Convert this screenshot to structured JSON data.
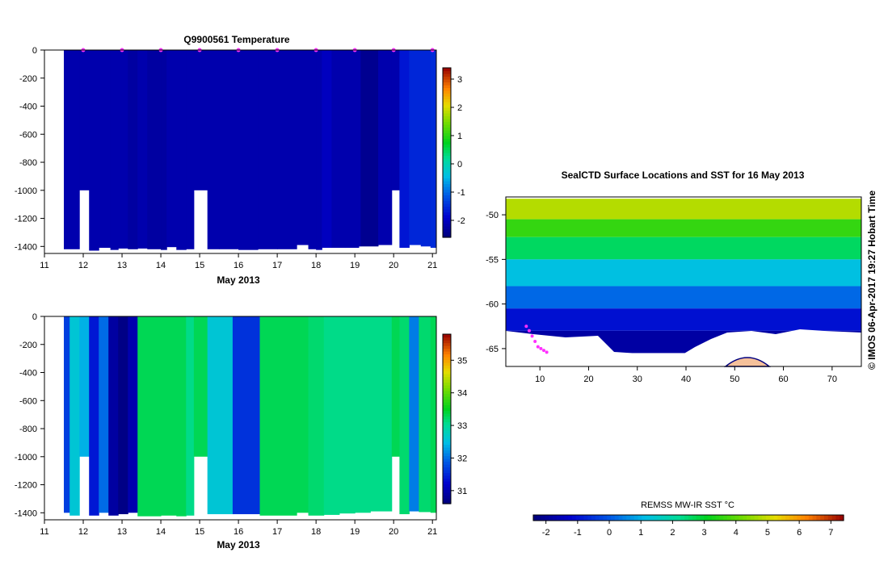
{
  "chart_data": [
    {
      "type": "heatmap",
      "title": "Q9900561  Temperature",
      "xlabel": "May 2013",
      "ylabel": "",
      "x_ticks": [
        "11",
        "12",
        "13",
        "14",
        "15",
        "16",
        "17",
        "18",
        "19",
        "20",
        "21"
      ],
      "y_ticks": [
        "0",
        "-200",
        "-400",
        "-600",
        "-800",
        "-1000",
        "-1200",
        "-1400"
      ],
      "xlim": [
        11,
        21.1
      ],
      "ylim": [
        -1450,
        0
      ],
      "colorbar": {
        "ticks": [
          "-2",
          "-1",
          "0",
          "1",
          "2",
          "3"
        ],
        "range": [
          -2.6,
          3.4
        ]
      },
      "profiles": [
        {
          "x0": 11.5,
          "x1": 11.9,
          "value": -2.15,
          "bottom": -1420
        },
        {
          "x0": 11.9,
          "x1": 12.15,
          "value": -2.15,
          "bottom": -1000
        },
        {
          "x0": 12.15,
          "x1": 12.4,
          "value": -2.15,
          "bottom": -1430
        },
        {
          "x0": 12.4,
          "x1": 12.7,
          "value": -2.15,
          "bottom": -1410
        },
        {
          "x0": 12.7,
          "x1": 12.9,
          "value": -2.15,
          "bottom": -1425
        },
        {
          "x0": 12.9,
          "x1": 13.15,
          "value": -2.15,
          "bottom": -1415
        },
        {
          "x0": 13.15,
          "x1": 13.4,
          "value": -2.25,
          "bottom": -1420
        },
        {
          "x0": 13.4,
          "x1": 13.65,
          "value": -2.15,
          "bottom": -1415
        },
        {
          "x0": 13.65,
          "x1": 14.0,
          "value": -2.25,
          "bottom": -1420
        },
        {
          "x0": 14.0,
          "x1": 14.15,
          "value": -2.25,
          "bottom": -1425
        },
        {
          "x0": 14.15,
          "x1": 14.4,
          "value": -2.15,
          "bottom": -1405
        },
        {
          "x0": 14.4,
          "x1": 14.65,
          "value": -2.15,
          "bottom": -1425
        },
        {
          "x0": 14.65,
          "x1": 14.85,
          "value": -2.15,
          "bottom": -1420
        },
        {
          "x0": 14.85,
          "x1": 15.2,
          "value": -2.15,
          "bottom": -1000
        },
        {
          "x0": 15.2,
          "x1": 15.5,
          "value": -2.15,
          "bottom": -1420
        },
        {
          "x0": 15.5,
          "x1": 16.0,
          "value": -2.15,
          "bottom": -1420
        },
        {
          "x0": 16.0,
          "x1": 16.5,
          "value": -2.15,
          "bottom": -1425
        },
        {
          "x0": 16.5,
          "x1": 17.0,
          "value": -2.15,
          "bottom": -1420
        },
        {
          "x0": 17.0,
          "x1": 17.5,
          "value": -2.15,
          "bottom": -1420
        },
        {
          "x0": 17.5,
          "x1": 17.8,
          "value": -2.15,
          "bottom": -1390
        },
        {
          "x0": 17.8,
          "x1": 18.0,
          "value": -2.15,
          "bottom": -1420
        },
        {
          "x0": 18.0,
          "x1": 18.15,
          "value": -2.15,
          "bottom": -1425
        },
        {
          "x0": 18.15,
          "x1": 18.4,
          "value": -2.0,
          "bottom": -1410
        },
        {
          "x0": 18.4,
          "x1": 18.75,
          "value": -2.15,
          "bottom": -1410
        },
        {
          "x0": 18.75,
          "x1": 19.1,
          "value": -2.15,
          "bottom": -1410
        },
        {
          "x0": 19.1,
          "x1": 19.15,
          "value": -2.15,
          "bottom": -1400
        },
        {
          "x0": 19.15,
          "x1": 19.6,
          "value": -2.4,
          "bottom": -1400
        },
        {
          "x0": 19.6,
          "x1": 19.95,
          "value": -2.15,
          "bottom": -1390
        },
        {
          "x0": 19.95,
          "x1": 20.15,
          "value": -2.15,
          "bottom": -1000
        },
        {
          "x0": 20.15,
          "x1": 20.4,
          "value": -1.7,
          "bottom": -1410
        },
        {
          "x0": 20.4,
          "x1": 20.7,
          "value": -1.55,
          "bottom": -1390
        },
        {
          "x0": 20.7,
          "x1": 20.95,
          "value": -1.55,
          "bottom": -1400
        },
        {
          "x0": 20.95,
          "x1": 21.1,
          "value": -1.5,
          "bottom": -1410
        }
      ],
      "surface_markers_x": [
        12.0,
        13.0,
        14.0,
        15.0,
        16.0,
        17.0,
        18.0,
        19.0,
        20.0,
        21.0
      ]
    },
    {
      "type": "heatmap",
      "title": "",
      "xlabel": "May 2013",
      "ylabel": "",
      "x_ticks": [
        "11",
        "12",
        "13",
        "14",
        "15",
        "16",
        "17",
        "18",
        "19",
        "20",
        "21"
      ],
      "y_ticks": [
        "0",
        "-200",
        "-400",
        "-600",
        "-800",
        "-1000",
        "-1200",
        "-1400"
      ],
      "xlim": [
        11,
        21.1
      ],
      "ylim": [
        -1450,
        0
      ],
      "colorbar": {
        "ticks": [
          "31",
          "32",
          "33",
          "34",
          "35"
        ],
        "range": [
          30.6,
          35.8
        ]
      },
      "profiles": [
        {
          "x0": 11.5,
          "x1": 11.65,
          "value": 31.7,
          "bottom": -1400
        },
        {
          "x0": 11.65,
          "x1": 11.9,
          "value": 32.6,
          "bottom": -1420
        },
        {
          "x0": 11.9,
          "x1": 12.15,
          "value": 32.4,
          "bottom": -1000
        },
        {
          "x0": 12.15,
          "x1": 12.4,
          "value": 31.4,
          "bottom": -1420
        },
        {
          "x0": 12.4,
          "x1": 12.65,
          "value": 32.0,
          "bottom": -1400
        },
        {
          "x0": 12.65,
          "x1": 12.9,
          "value": 30.9,
          "bottom": -1420
        },
        {
          "x0": 12.9,
          "x1": 13.15,
          "value": 30.7,
          "bottom": -1410
        },
        {
          "x0": 13.15,
          "x1": 13.4,
          "value": 31.0,
          "bottom": -1400
        },
        {
          "x0": 13.4,
          "x1": 14.0,
          "value": 33.3,
          "bottom": -1425
        },
        {
          "x0": 14.0,
          "x1": 14.4,
          "value": 33.3,
          "bottom": -1420
        },
        {
          "x0": 14.4,
          "x1": 14.65,
          "value": 33.3,
          "bottom": -1425
        },
        {
          "x0": 14.65,
          "x1": 14.85,
          "value": 33.1,
          "bottom": -1420
        },
        {
          "x0": 14.85,
          "x1": 15.2,
          "value": 33.3,
          "bottom": -1000
        },
        {
          "x0": 15.2,
          "x1": 15.85,
          "value": 32.6,
          "bottom": -1410
        },
        {
          "x0": 15.85,
          "x1": 16.55,
          "value": 31.6,
          "bottom": -1410
        },
        {
          "x0": 16.55,
          "x1": 17.5,
          "value": 33.3,
          "bottom": -1420
        },
        {
          "x0": 17.5,
          "x1": 17.8,
          "value": 33.3,
          "bottom": -1400
        },
        {
          "x0": 17.8,
          "x1": 18.2,
          "value": 33.2,
          "bottom": -1420
        },
        {
          "x0": 18.2,
          "x1": 18.6,
          "value": 33.1,
          "bottom": -1415
        },
        {
          "x0": 18.6,
          "x1": 19.0,
          "value": 33.1,
          "bottom": -1405
        },
        {
          "x0": 19.0,
          "x1": 19.4,
          "value": 33.1,
          "bottom": -1400
        },
        {
          "x0": 19.4,
          "x1": 19.95,
          "value": 33.1,
          "bottom": -1390
        },
        {
          "x0": 19.95,
          "x1": 20.15,
          "value": 33.3,
          "bottom": -1000
        },
        {
          "x0": 20.15,
          "x1": 20.4,
          "value": 33.2,
          "bottom": -1410
        },
        {
          "x0": 20.4,
          "x1": 20.65,
          "value": 32.1,
          "bottom": -1390
        },
        {
          "x0": 20.65,
          "x1": 20.95,
          "value": 33.2,
          "bottom": -1395
        },
        {
          "x0": 20.95,
          "x1": 21.1,
          "value": 33.3,
          "bottom": -1400
        }
      ]
    },
    {
      "type": "heatmap",
      "title": "SealCTD Surface Locations and SST for 16 May 2013",
      "xlabel": "",
      "ylabel": "",
      "x_ticks": [
        "10",
        "20",
        "30",
        "40",
        "50",
        "60",
        "70"
      ],
      "y_ticks": [
        "-50",
        "-55",
        "-60",
        "-65"
      ],
      "xlim": [
        3,
        76
      ],
      "ylim": [
        -67,
        -48
      ],
      "colorbar_label": "REMSS MW-IR SST °C",
      "colorbar": {
        "ticks": [
          "-2",
          "-1",
          "0",
          "1",
          "2",
          "3",
          "4",
          "5",
          "6",
          "7"
        ],
        "range": [
          -2.4,
          7.4
        ]
      },
      "sst_bands": [
        {
          "lat_top": -48.2,
          "lat_bottom": -50.5,
          "value": 4.8
        },
        {
          "lat_top": -50.5,
          "lat_bottom": -52.5,
          "value": 3.6
        },
        {
          "lat_top": -52.5,
          "lat_bottom": -55.0,
          "value": 2.6
        },
        {
          "lat_top": -55.0,
          "lat_bottom": -58.0,
          "value": 1.2
        },
        {
          "lat_top": -58.0,
          "lat_bottom": -60.5,
          "value": 0.2
        },
        {
          "lat_top": -60.5,
          "lat_bottom": -63.0,
          "value": -1.0
        },
        {
          "lat_top": -63.0,
          "lat_bottom": -65.5,
          "value": -1.8
        }
      ],
      "seal_tracks": [
        {
          "lon": [
            7.2,
            7.8,
            8.4,
            9.0,
            9.6,
            10.2,
            10.8,
            11.4
          ],
          "lat": [
            -62.5,
            -63.0,
            -63.6,
            -64.2,
            -64.8,
            -65.0,
            -65.2,
            -65.4
          ]
        }
      ]
    }
  ],
  "watermark": "© IMOS 06-Apr-2017 19:27 Hobart Time"
}
